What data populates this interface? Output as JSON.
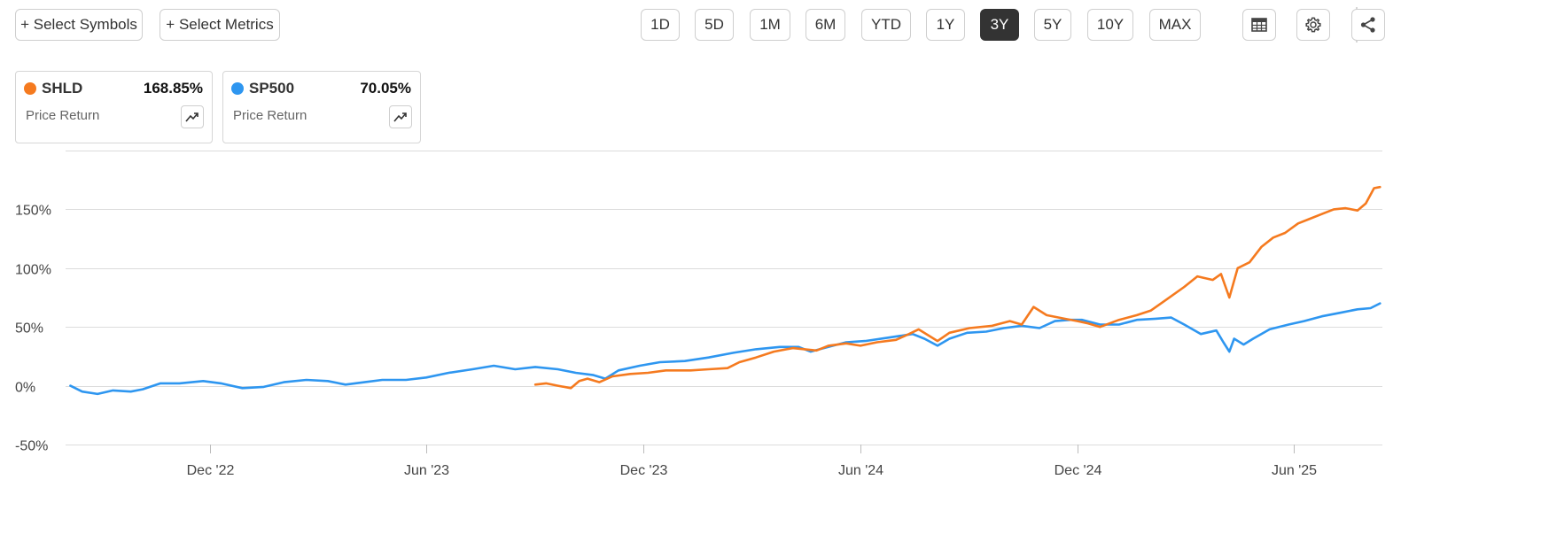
{
  "toolbar": {
    "select_symbols": "+ Select Symbols",
    "select_metrics": "+ Select Metrics",
    "ranges": [
      "1D",
      "5D",
      "1M",
      "6M",
      "YTD",
      "1Y",
      "3Y",
      "5Y",
      "10Y",
      "MAX"
    ],
    "active_range": "3Y",
    "icons": [
      "table-icon",
      "gear-icon",
      "share-icon"
    ]
  },
  "legend_cards": [
    {
      "symbol": "SHLD",
      "value": "168.85%",
      "metric": "Price Return",
      "color": "#f57a1f",
      "icon": "trend-icon"
    },
    {
      "symbol": "SP500",
      "value": "70.05%",
      "metric": "Price Return",
      "color": "#2e96f0",
      "icon": "trend-icon"
    }
  ],
  "chart_data": {
    "type": "line",
    "title": "",
    "xlabel": "",
    "ylabel": "",
    "ylim": [
      -50,
      200
    ],
    "yticks": [
      -50,
      0,
      50,
      100,
      150
    ],
    "ytick_labels": [
      "-50%",
      "0%",
      "50%",
      "100%",
      "150%"
    ],
    "xticks": [
      "2022-12-01",
      "2023-06-01",
      "2023-12-01",
      "2024-06-01",
      "2024-12-01",
      "2025-06-01"
    ],
    "xtick_labels": [
      "Dec '22",
      "Jun '23",
      "Dec '23",
      "Jun '24",
      "Dec '24",
      "Jun '25"
    ],
    "xlim": [
      "2022-08-01",
      "2025-08-15"
    ],
    "grid": "horizontal",
    "series": [
      {
        "name": "SHLD",
        "color": "#f57a1f",
        "points": [
          [
            "2023-09-01",
            1
          ],
          [
            "2023-09-10",
            2
          ],
          [
            "2023-09-20",
            0
          ],
          [
            "2023-10-01",
            -2
          ],
          [
            "2023-10-08",
            4
          ],
          [
            "2023-10-15",
            6
          ],
          [
            "2023-10-25",
            3
          ],
          [
            "2023-11-05",
            8
          ],
          [
            "2023-11-20",
            10
          ],
          [
            "2023-12-05",
            11
          ],
          [
            "2023-12-20",
            13
          ],
          [
            "2024-01-10",
            13
          ],
          [
            "2024-01-25",
            14
          ],
          [
            "2024-02-10",
            15
          ],
          [
            "2024-02-20",
            20
          ],
          [
            "2024-03-05",
            24
          ],
          [
            "2024-03-20",
            29
          ],
          [
            "2024-04-05",
            32
          ],
          [
            "2024-04-15",
            31
          ],
          [
            "2024-04-25",
            30
          ],
          [
            "2024-05-05",
            34
          ],
          [
            "2024-05-20",
            36
          ],
          [
            "2024-06-01",
            34
          ],
          [
            "2024-06-15",
            37
          ],
          [
            "2024-07-01",
            39
          ],
          [
            "2024-07-12",
            44
          ],
          [
            "2024-07-20",
            48
          ],
          [
            "2024-08-05",
            38
          ],
          [
            "2024-08-15",
            45
          ],
          [
            "2024-09-01",
            49
          ],
          [
            "2024-09-20",
            51
          ],
          [
            "2024-10-05",
            55
          ],
          [
            "2024-10-15",
            52
          ],
          [
            "2024-10-25",
            67
          ],
          [
            "2024-11-05",
            60
          ],
          [
            "2024-11-20",
            57
          ],
          [
            "2024-12-01",
            55
          ],
          [
            "2024-12-10",
            53
          ],
          [
            "2024-12-20",
            50
          ],
          [
            "2025-01-05",
            56
          ],
          [
            "2025-01-20",
            60
          ],
          [
            "2025-02-01",
            64
          ],
          [
            "2025-02-15",
            74
          ],
          [
            "2025-03-01",
            84
          ],
          [
            "2025-03-12",
            93
          ],
          [
            "2025-03-25",
            90
          ],
          [
            "2025-04-01",
            95
          ],
          [
            "2025-04-08",
            75
          ],
          [
            "2025-04-15",
            100
          ],
          [
            "2025-04-25",
            105
          ],
          [
            "2025-05-05",
            118
          ],
          [
            "2025-05-15",
            126
          ],
          [
            "2025-05-25",
            130
          ],
          [
            "2025-06-05",
            138
          ],
          [
            "2025-06-15",
            142
          ],
          [
            "2025-06-25",
            146
          ],
          [
            "2025-07-05",
            150
          ],
          [
            "2025-07-15",
            151
          ],
          [
            "2025-07-25",
            149
          ],
          [
            "2025-08-01",
            155
          ],
          [
            "2025-08-08",
            168
          ],
          [
            "2025-08-13",
            169
          ]
        ]
      },
      {
        "name": "SP500",
        "color": "#2e96f0",
        "points": [
          [
            "2022-08-05",
            0
          ],
          [
            "2022-08-15",
            -5
          ],
          [
            "2022-08-28",
            -7
          ],
          [
            "2022-09-10",
            -4
          ],
          [
            "2022-09-25",
            -5
          ],
          [
            "2022-10-05",
            -3
          ],
          [
            "2022-10-20",
            2
          ],
          [
            "2022-11-05",
            2
          ],
          [
            "2022-11-25",
            4
          ],
          [
            "2022-12-10",
            2
          ],
          [
            "2022-12-28",
            -2
          ],
          [
            "2023-01-15",
            -1
          ],
          [
            "2023-02-01",
            3
          ],
          [
            "2023-02-20",
            5
          ],
          [
            "2023-03-10",
            4
          ],
          [
            "2023-03-25",
            1
          ],
          [
            "2023-04-10",
            3
          ],
          [
            "2023-04-25",
            5
          ],
          [
            "2023-05-15",
            5
          ],
          [
            "2023-06-01",
            7
          ],
          [
            "2023-06-20",
            11
          ],
          [
            "2023-07-10",
            14
          ],
          [
            "2023-07-28",
            17
          ],
          [
            "2023-08-15",
            14
          ],
          [
            "2023-09-01",
            16
          ],
          [
            "2023-09-20",
            14
          ],
          [
            "2023-10-05",
            11
          ],
          [
            "2023-10-20",
            9
          ],
          [
            "2023-10-30",
            6
          ],
          [
            "2023-11-10",
            13
          ],
          [
            "2023-11-28",
            17
          ],
          [
            "2023-12-15",
            20
          ],
          [
            "2024-01-05",
            21
          ],
          [
            "2024-01-25",
            24
          ],
          [
            "2024-02-15",
            28
          ],
          [
            "2024-03-05",
            31
          ],
          [
            "2024-03-25",
            33
          ],
          [
            "2024-04-10",
            33
          ],
          [
            "2024-04-20",
            29
          ],
          [
            "2024-05-05",
            33
          ],
          [
            "2024-05-20",
            37
          ],
          [
            "2024-06-05",
            38
          ],
          [
            "2024-06-25",
            41
          ],
          [
            "2024-07-15",
            44
          ],
          [
            "2024-07-25",
            40
          ],
          [
            "2024-08-05",
            34
          ],
          [
            "2024-08-15",
            40
          ],
          [
            "2024-08-30",
            45
          ],
          [
            "2024-09-15",
            46
          ],
          [
            "2024-09-30",
            49
          ],
          [
            "2024-10-15",
            51
          ],
          [
            "2024-10-30",
            49
          ],
          [
            "2024-11-12",
            55
          ],
          [
            "2024-11-25",
            56
          ],
          [
            "2024-12-05",
            56
          ],
          [
            "2024-12-20",
            52
          ],
          [
            "2025-01-05",
            52
          ],
          [
            "2025-01-20",
            56
          ],
          [
            "2025-02-05",
            57
          ],
          [
            "2025-02-18",
            58
          ],
          [
            "2025-03-01",
            52
          ],
          [
            "2025-03-15",
            44
          ],
          [
            "2025-03-28",
            47
          ],
          [
            "2025-04-03",
            37
          ],
          [
            "2025-04-08",
            29
          ],
          [
            "2025-04-12",
            40
          ],
          [
            "2025-04-20",
            35
          ],
          [
            "2025-04-28",
            40
          ],
          [
            "2025-05-12",
            48
          ],
          [
            "2025-05-28",
            52
          ],
          [
            "2025-06-10",
            55
          ],
          [
            "2025-06-25",
            59
          ],
          [
            "2025-07-10",
            62
          ],
          [
            "2025-07-25",
            65
          ],
          [
            "2025-08-05",
            66
          ],
          [
            "2025-08-13",
            70
          ]
        ]
      }
    ]
  }
}
